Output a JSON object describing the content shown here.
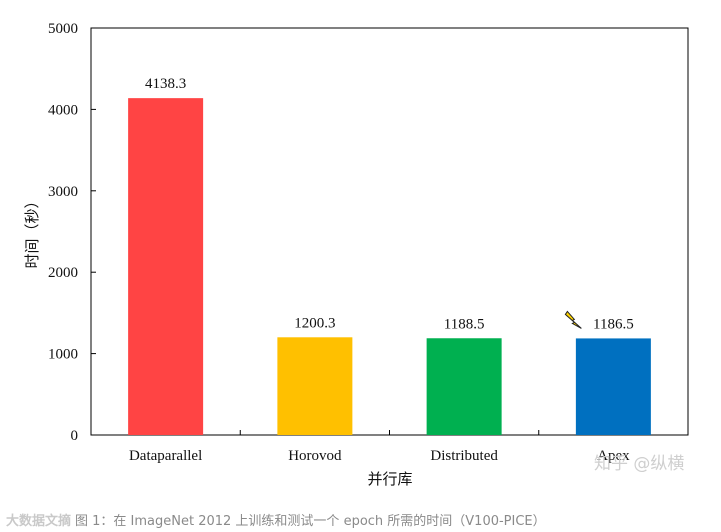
{
  "chart_data": {
    "type": "bar",
    "title": "",
    "xlabel": "并行库",
    "ylabel": "时间（秒）",
    "categories": [
      "Dataparallel",
      "Horovod",
      "Distributed",
      "Apex"
    ],
    "values": [
      4138.3,
      1200.3,
      1188.5,
      1186.5
    ],
    "value_labels": [
      "4138.3",
      "1200.3",
      "1188.5",
      "1186.5"
    ],
    "colors": [
      "#ff4444",
      "#ffc000",
      "#00b050",
      "#0070c0"
    ],
    "ylim": [
      0,
      5000
    ],
    "yticks": [
      0,
      1000,
      2000,
      3000,
      4000,
      5000
    ],
    "grid": false,
    "legend": "none",
    "highlight_index": 3,
    "highlight_icon": "lightning-icon"
  },
  "watermark": {
    "text": "知乎 @纵横"
  },
  "caption": {
    "logo_text": "大数据文摘",
    "text": "图 1：在 ImageNet 2012 上训练和测试一个 epoch 所需的时间（V100-PICE）"
  }
}
